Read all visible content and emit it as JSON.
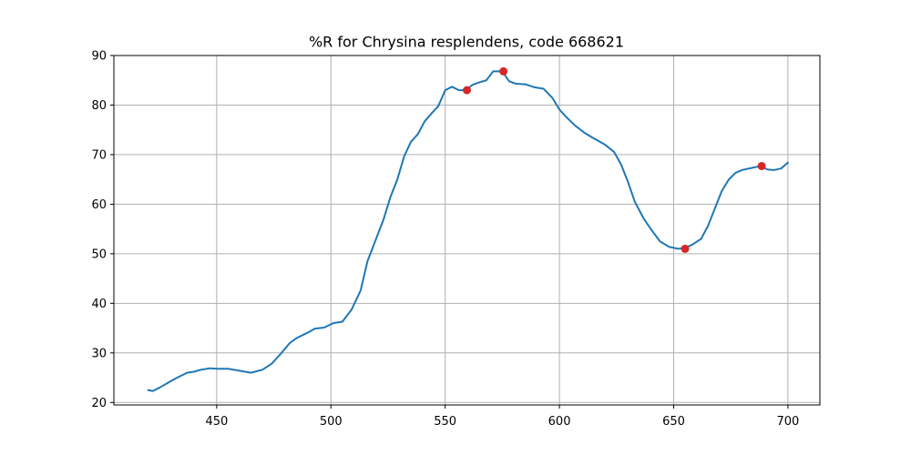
{
  "chart_data": {
    "type": "line",
    "title": "%R for Chrysina resplendens, code 668621",
    "xlabel": "",
    "ylabel": "",
    "xlim": [
      405,
      714
    ],
    "ylim": [
      19.5,
      90
    ],
    "xticks": [
      450,
      500,
      550,
      600,
      650,
      700
    ],
    "yticks": [
      20,
      30,
      40,
      50,
      60,
      70,
      80,
      90
    ],
    "grid": true,
    "colors": {
      "line": "#1f77b4",
      "markers": "#d62728",
      "grid": "#b0b0b0"
    },
    "series": [
      {
        "x": [
          420,
          422,
          425,
          428,
          431,
          434,
          437,
          440,
          443,
          447,
          450,
          455,
          460,
          465,
          470,
          474,
          478,
          482,
          485,
          489,
          493,
          497,
          501,
          505,
          509,
          513,
          516,
          519,
          523,
          526,
          529,
          532,
          535,
          538,
          541,
          544,
          547,
          550,
          553,
          556,
          559,
          562,
          565,
          568,
          571,
          575,
          578,
          581,
          585,
          589,
          593,
          597,
          600,
          603,
          607,
          611,
          615,
          620,
          624,
          627,
          630,
          633,
          637,
          640,
          644,
          648,
          652,
          655,
          658,
          662,
          665,
          668,
          671,
          674,
          677,
          680,
          684,
          688,
          691,
          694,
          697,
          700
        ],
        "y": [
          22.5,
          22.3,
          23.0,
          23.8,
          24.6,
          25.3,
          26.0,
          26.2,
          26.6,
          26.9,
          26.8,
          26.8,
          26.4,
          26.0,
          26.6,
          27.8,
          29.8,
          32.0,
          33.0,
          33.9,
          34.9,
          35.1,
          36.0,
          36.3,
          38.7,
          42.6,
          48.5,
          52.1,
          56.9,
          61.4,
          64.9,
          69.6,
          72.6,
          74.1,
          76.7,
          78.3,
          79.8,
          83.0,
          83.7,
          83.0,
          83.0,
          84.1,
          84.6,
          85.0,
          86.8,
          86.8,
          84.8,
          84.3,
          84.2,
          83.6,
          83.3,
          81.4,
          79.1,
          77.6,
          75.8,
          74.4,
          73.3,
          72.0,
          70.5,
          68.0,
          64.5,
          60.5,
          57.0,
          55.0,
          52.5,
          51.4,
          51.0,
          51.2,
          51.8,
          53.0,
          55.6,
          59.1,
          62.6,
          64.9,
          66.3,
          66.9,
          67.3,
          67.7,
          67.0,
          66.9,
          67.2,
          68.4
        ]
      }
    ],
    "markers": {
      "x": [
        559.5,
        575.5,
        655,
        688.5
      ],
      "y": [
        83.0,
        86.8,
        51.0,
        67.7
      ]
    }
  }
}
